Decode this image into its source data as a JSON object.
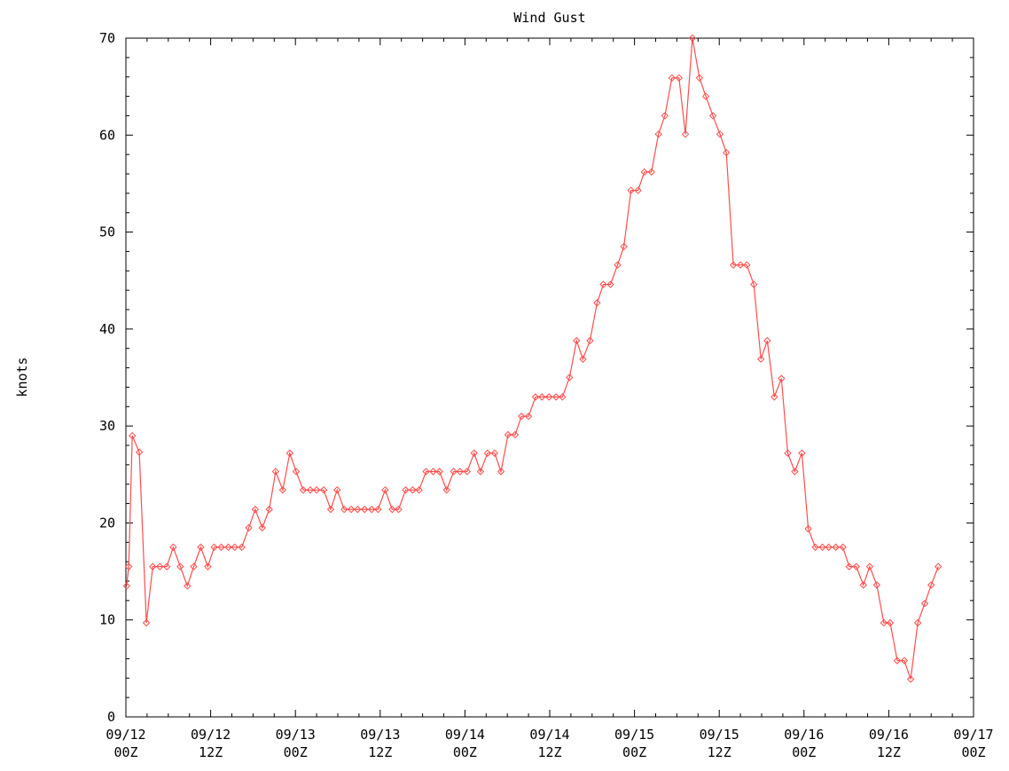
{
  "chart_data": {
    "type": "line",
    "title": "Wind Gust",
    "xlabel": "",
    "ylabel": "knots",
    "ylim": [
      0,
      70
    ],
    "yticks": [
      0,
      10,
      20,
      30,
      40,
      50,
      60,
      70
    ],
    "xlim": [
      "09/12 00Z",
      "09/17 00Z"
    ],
    "xticks": [
      {
        "line1": "09/12",
        "line2": "00Z",
        "hours": 0
      },
      {
        "line1": "09/12",
        "line2": "12Z",
        "hours": 12
      },
      {
        "line1": "09/13",
        "line2": "00Z",
        "hours": 24
      },
      {
        "line1": "09/13",
        "line2": "12Z",
        "hours": 36
      },
      {
        "line1": "09/14",
        "line2": "00Z",
        "hours": 48
      },
      {
        "line1": "09/14",
        "line2": "12Z",
        "hours": 60
      },
      {
        "line1": "09/15",
        "line2": "00Z",
        "hours": 72
      },
      {
        "line1": "09/15",
        "line2": "12Z",
        "hours": 84
      },
      {
        "line1": "09/16",
        "line2": "00Z",
        "hours": 96
      },
      {
        "line1": "09/16",
        "line2": "12Z",
        "hours": 108
      },
      {
        "line1": "09/17",
        "line2": "00Z",
        "hours": 120
      }
    ],
    "grid": false,
    "colors": {
      "series": "#ff4d4d",
      "axis": "#000000"
    },
    "series": [
      {
        "points": [
          [
            0.1,
            13.5
          ],
          [
            0.4,
            15.5
          ],
          [
            0.9,
            29
          ],
          [
            1.9,
            27.3
          ],
          [
            2.9,
            9.7
          ],
          [
            3.8,
            15.5
          ],
          [
            4.8,
            15.5
          ],
          [
            5.8,
            15.5
          ],
          [
            6.7,
            17.5
          ],
          [
            7.7,
            15.5
          ],
          [
            8.7,
            13.5
          ],
          [
            9.6,
            15.5
          ],
          [
            10.6,
            17.5
          ],
          [
            11.6,
            15.5
          ],
          [
            12.5,
            17.5
          ],
          [
            13.5,
            17.5
          ],
          [
            14.5,
            17.5
          ],
          [
            15.4,
            17.5
          ],
          [
            16.4,
            17.5
          ],
          [
            17.4,
            19.5
          ],
          [
            18.3,
            21.4
          ],
          [
            19.3,
            19.5
          ],
          [
            20.3,
            21.4
          ],
          [
            21.2,
            25.3
          ],
          [
            22.2,
            23.4
          ],
          [
            23.2,
            27.2
          ],
          [
            24.1,
            25.3
          ],
          [
            25.1,
            23.4
          ],
          [
            26.1,
            23.4
          ],
          [
            27.0,
            23.4
          ],
          [
            28.0,
            23.4
          ],
          [
            29.0,
            21.4
          ],
          [
            29.9,
            23.4
          ],
          [
            30.9,
            21.4
          ],
          [
            31.9,
            21.4
          ],
          [
            32.8,
            21.4
          ],
          [
            33.8,
            21.4
          ],
          [
            34.8,
            21.4
          ],
          [
            35.7,
            21.4
          ],
          [
            36.7,
            23.4
          ],
          [
            37.7,
            21.4
          ],
          [
            38.6,
            21.4
          ],
          [
            39.6,
            23.4
          ],
          [
            40.6,
            23.4
          ],
          [
            41.5,
            23.4
          ],
          [
            42.5,
            25.3
          ],
          [
            43.5,
            25.3
          ],
          [
            44.4,
            25.3
          ],
          [
            45.4,
            23.4
          ],
          [
            46.4,
            25.3
          ],
          [
            47.3,
            25.3
          ],
          [
            48.3,
            25.3
          ],
          [
            49.3,
            27.2
          ],
          [
            50.2,
            25.3
          ],
          [
            51.2,
            27.2
          ],
          [
            52.2,
            27.2
          ],
          [
            53.1,
            25.3
          ],
          [
            54.1,
            29.1
          ],
          [
            55.1,
            29.1
          ],
          [
            56.0,
            31.0
          ],
          [
            57.0,
            31.0
          ],
          [
            58.0,
            33.0
          ],
          [
            58.9,
            33.0
          ],
          [
            59.9,
            33.0
          ],
          [
            60.9,
            33.0
          ],
          [
            61.8,
            33.0
          ],
          [
            62.8,
            35.0
          ],
          [
            63.8,
            38.8
          ],
          [
            64.7,
            36.9
          ],
          [
            65.7,
            38.8
          ],
          [
            66.7,
            42.7
          ],
          [
            67.6,
            44.6
          ],
          [
            68.6,
            44.6
          ],
          [
            69.6,
            46.6
          ],
          [
            70.5,
            48.5
          ],
          [
            71.5,
            54.3
          ],
          [
            72.5,
            54.3
          ],
          [
            73.4,
            56.2
          ],
          [
            74.4,
            56.2
          ],
          [
            75.4,
            60.1
          ],
          [
            76.3,
            62.0
          ],
          [
            77.3,
            65.9
          ],
          [
            78.3,
            65.9
          ],
          [
            79.2,
            60.1
          ],
          [
            80.2,
            70.0
          ],
          [
            81.2,
            65.9
          ],
          [
            82.1,
            64.0
          ],
          [
            83.1,
            62.0
          ],
          [
            84.1,
            60.1
          ],
          [
            85.0,
            58.2
          ],
          [
            86.0,
            46.6
          ],
          [
            87.0,
            46.6
          ],
          [
            87.9,
            46.6
          ],
          [
            88.9,
            44.6
          ],
          [
            89.9,
            36.9
          ],
          [
            90.8,
            38.8
          ],
          [
            91.8,
            33.0
          ],
          [
            92.8,
            34.9
          ],
          [
            93.7,
            27.2
          ],
          [
            94.7,
            25.3
          ],
          [
            95.7,
            27.2
          ],
          [
            96.6,
            19.4
          ],
          [
            97.6,
            17.5
          ],
          [
            98.6,
            17.5
          ],
          [
            99.5,
            17.5
          ],
          [
            100.5,
            17.5
          ],
          [
            101.5,
            17.5
          ],
          [
            102.4,
            15.5
          ],
          [
            103.4,
            15.5
          ],
          [
            104.4,
            13.6
          ],
          [
            105.3,
            15.5
          ],
          [
            106.3,
            13.6
          ],
          [
            107.3,
            9.7
          ],
          [
            108.2,
            9.7
          ],
          [
            109.2,
            5.8
          ],
          [
            110.2,
            5.8
          ],
          [
            111.1,
            3.9
          ],
          [
            112.1,
            9.7
          ],
          [
            113.1,
            11.7
          ],
          [
            114.0,
            13.6
          ],
          [
            115.0,
            15.5
          ]
        ]
      }
    ]
  }
}
